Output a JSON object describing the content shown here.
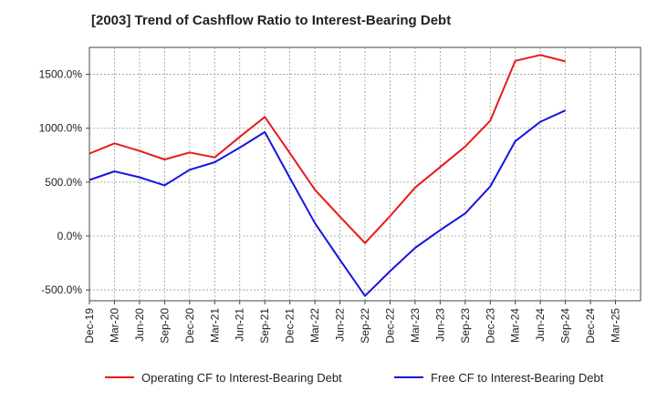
{
  "chart_data": {
    "type": "line",
    "title": "[2003]  Trend of Cashflow Ratio to Interest-Bearing Debt",
    "xlabel": "",
    "ylabel": "",
    "categories": [
      "Dec-19",
      "Mar-20",
      "Jun-20",
      "Sep-20",
      "Dec-20",
      "Mar-21",
      "Jun-21",
      "Sep-21",
      "Dec-21",
      "Mar-22",
      "Jun-22",
      "Sep-22",
      "Dec-22",
      "Mar-23",
      "Jun-23",
      "Sep-23",
      "Dec-23",
      "Mar-24",
      "Jun-24",
      "Sep-24",
      "Dec-24",
      "Mar-25"
    ],
    "ylim": [
      -600,
      1750
    ],
    "yticks": [
      -500,
      0,
      500,
      1000,
      1500
    ],
    "ytick_labels": [
      "-500.0%",
      "0.0%",
      "500.0%",
      "1000.0%",
      "1500.0%"
    ],
    "grid": true,
    "legend_position": "bottom",
    "series": [
      {
        "name": "Operating CF to Interest-Bearing Debt",
        "color": "#e8191c",
        "values": [
          765,
          860,
          790,
          710,
          775,
          730,
          920,
          1105,
          770,
          430,
          180,
          -65,
          185,
          450,
          640,
          830,
          1070,
          1625,
          1680,
          1620,
          null,
          null
        ]
      },
      {
        "name": "Free CF to Interest-Bearing Debt",
        "color": "#1616e0",
        "values": [
          520,
          600,
          545,
          470,
          615,
          685,
          820,
          965,
          540,
          120,
          -220,
          -555,
          -325,
          -110,
          55,
          210,
          460,
          880,
          1060,
          1165,
          null,
          null
        ]
      }
    ]
  }
}
